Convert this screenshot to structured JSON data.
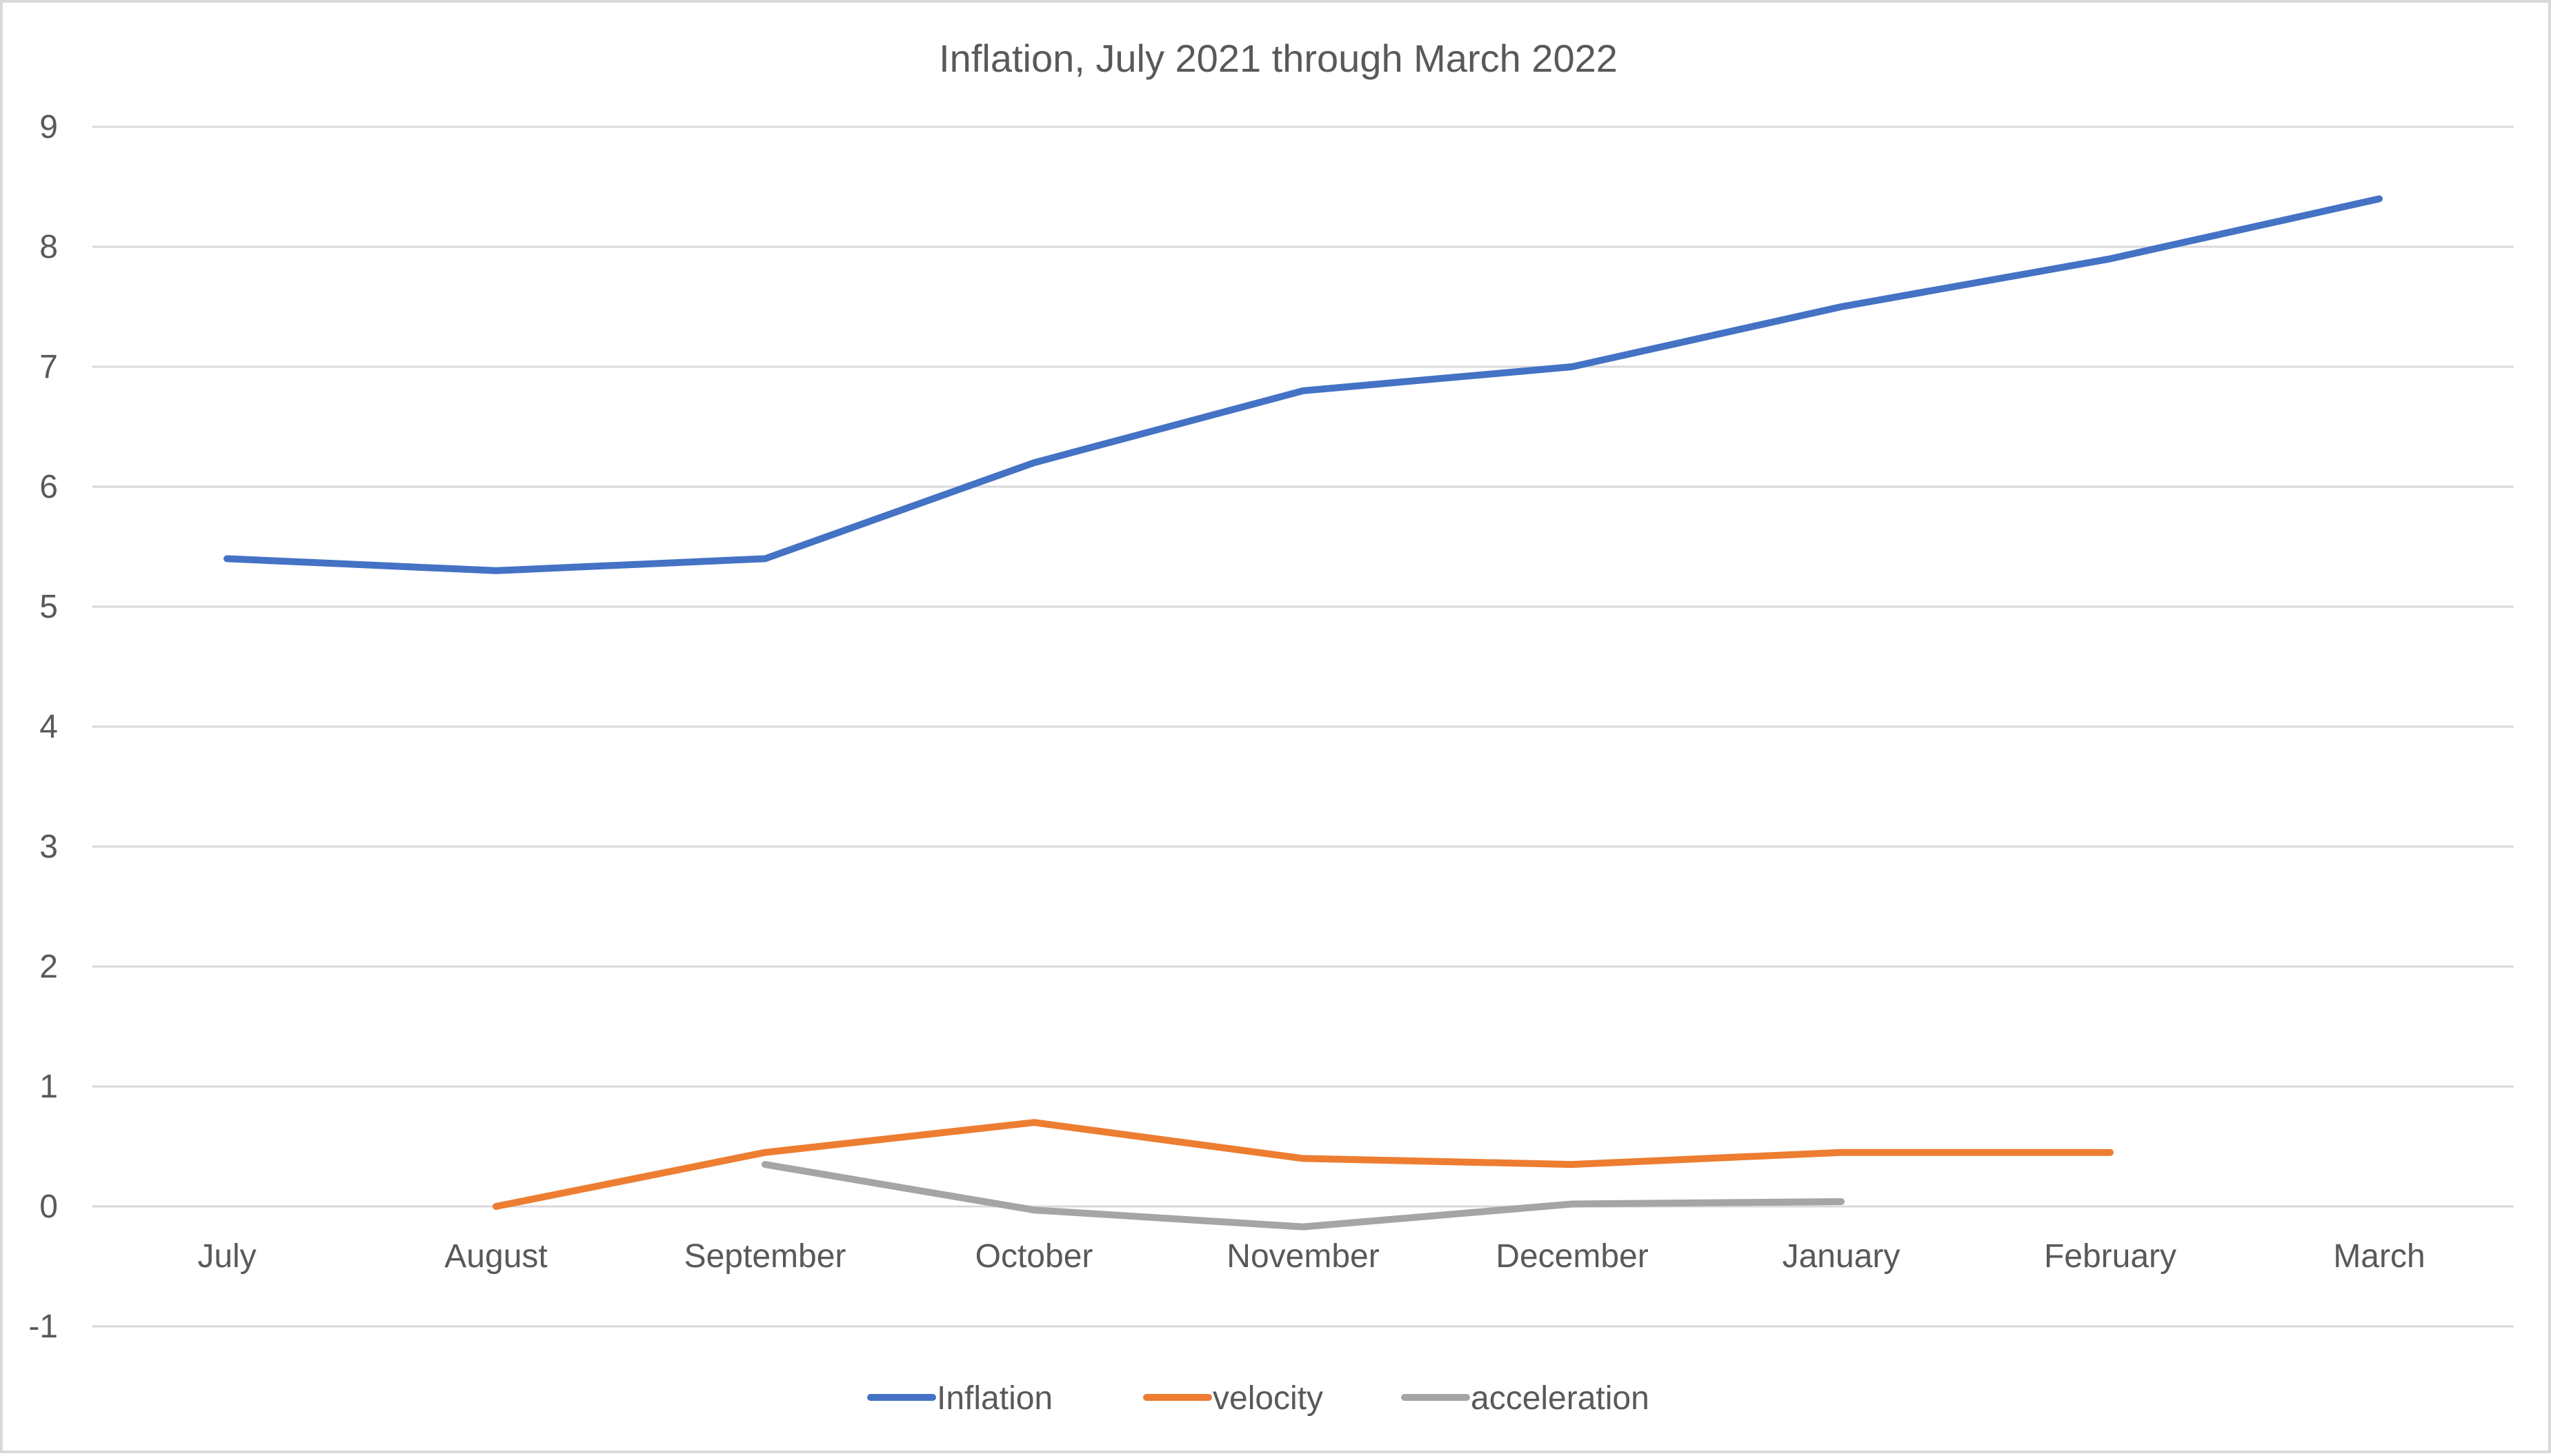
{
  "chart_data": {
    "type": "line",
    "title": "Inflation, July 2021 through March 2022",
    "xlabel": "",
    "ylabel": "",
    "categories": [
      "July",
      "August",
      "September",
      "October",
      "November",
      "December",
      "January",
      "February",
      "March"
    ],
    "ylim": [
      -1,
      9
    ],
    "yticks": [
      "-1",
      "0",
      "1",
      "2",
      "3",
      "4",
      "5",
      "6",
      "7",
      "8",
      "9"
    ],
    "grid": true,
    "legend": "bottom",
    "series": [
      {
        "name": "Inflation",
        "color": "#4472C4",
        "values": [
          5.4,
          5.3,
          5.4,
          6.2,
          6.8,
          7.0,
          7.5,
          7.9,
          8.4
        ]
      },
      {
        "name": "velocity",
        "color": "#ED7D31",
        "values": [
          null,
          0.0,
          0.45,
          0.7,
          0.4,
          0.35,
          0.45,
          0.45,
          null
        ]
      },
      {
        "name": "acceleration",
        "color": "#A5A5A5",
        "values": [
          null,
          null,
          0.35,
          -0.03,
          -0.17,
          0.02,
          0.04,
          null,
          null
        ]
      }
    ]
  }
}
